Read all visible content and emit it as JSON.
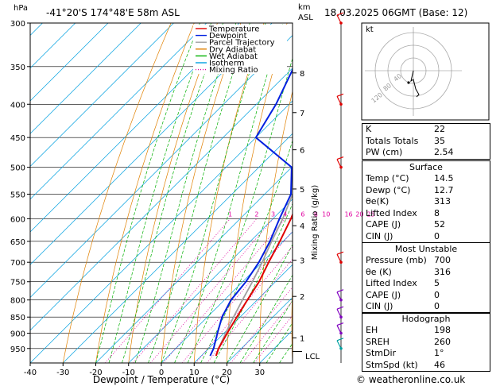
{
  "header": {
    "location": "-41°20'S  174°48'E  58m  ASL",
    "datetime": "18.03.2025  06GMT  (Base: 12)",
    "hpa_label": "hPa",
    "km_label": "km",
    "asl_label": "ASL"
  },
  "footer": {
    "copyright": "© weatheronline.co.uk"
  },
  "chart_data": {
    "type": "line",
    "subtype": "skew-T log-P",
    "xlabel": "Dewpoint / Temperature (°C)",
    "ylabel_right": "Mixing Ratio (g/kg)",
    "xlim": [
      -40,
      40
    ],
    "pressure_range": [
      300,
      1000
    ],
    "pressure_ticks": [
      300,
      350,
      400,
      450,
      500,
      550,
      600,
      650,
      700,
      750,
      800,
      850,
      900,
      950
    ],
    "x_ticks": [
      -40,
      -30,
      -20,
      -10,
      0,
      10,
      20,
      30
    ],
    "km_ticks": [
      {
        "km": "1",
        "p": 915
      },
      {
        "km": "2",
        "p": 790
      },
      {
        "km": "3",
        "p": 695
      },
      {
        "km": "4",
        "p": 615
      },
      {
        "km": "5",
        "p": 540
      },
      {
        "km": "6",
        "p": 470
      },
      {
        "km": "7",
        "p": 412
      },
      {
        "km": "8",
        "p": 358
      }
    ],
    "lcl_label": "LCL",
    "lcl_p": 960,
    "mixing_ratio_labels": [
      "1",
      "2",
      "3",
      "4",
      "6",
      "8",
      "10",
      "16",
      "20",
      "25"
    ],
    "legend": [
      {
        "name": "Temperature",
        "color": "#e00000",
        "style": "solid"
      },
      {
        "name": "Dewpoint",
        "color": "#0020e0",
        "style": "solid"
      },
      {
        "name": "Parcel Trajectory",
        "color": "#a0a0a0",
        "style": "solid"
      },
      {
        "name": "Dry Adiabat",
        "color": "#e08000",
        "style": "solid"
      },
      {
        "name": "Wet Adiabat",
        "color": "#00b000",
        "style": "solid"
      },
      {
        "name": "Isotherm",
        "color": "#00a0e0",
        "style": "solid"
      },
      {
        "name": "Mixing Ratio",
        "color": "#e000a0",
        "style": "dotted"
      }
    ],
    "series": [
      {
        "name": "Temperature",
        "points": [
          [
            975,
            14.5
          ],
          [
            950,
            13.0
          ],
          [
            900,
            11.0
          ],
          [
            850,
            9.0
          ],
          [
            800,
            7.0
          ],
          [
            750,
            5.0
          ],
          [
            700,
            2.0
          ],
          [
            650,
            -1.0
          ],
          [
            600,
            -4.5
          ],
          [
            550,
            -9.0
          ],
          [
            500,
            -14.5
          ],
          [
            450,
            -21.0
          ],
          [
            400,
            -28.0
          ],
          [
            350,
            -37.0
          ],
          [
            300,
            -47.0
          ]
        ]
      },
      {
        "name": "Dewpoint",
        "points": [
          [
            975,
            12.7
          ],
          [
            950,
            11.5
          ],
          [
            900,
            8.0
          ],
          [
            850,
            4.5
          ],
          [
            800,
            2.0
          ],
          [
            750,
            1.0
          ],
          [
            700,
            -1.0
          ],
          [
            650,
            -4.0
          ],
          [
            600,
            -8.0
          ],
          [
            550,
            -12.0
          ],
          [
            500,
            -20.0
          ],
          [
            450,
            -40.0
          ],
          [
            400,
            -44.0
          ],
          [
            350,
            -50.0
          ],
          [
            300,
            -59.0
          ]
        ]
      },
      {
        "name": "Parcel Trajectory",
        "points": [
          [
            975,
            14.5
          ],
          [
            950,
            13.0
          ],
          [
            900,
            10.5
          ],
          [
            850,
            8.0
          ],
          [
            800,
            5.5
          ],
          [
            750,
            3.0
          ],
          [
            700,
            0.0
          ],
          [
            650,
            -3.5
          ],
          [
            600,
            -7.0
          ],
          [
            550,
            -11.5
          ],
          [
            500,
            -17.0
          ],
          [
            450,
            -23.0
          ],
          [
            400,
            -30.0
          ],
          [
            350,
            -39.0
          ],
          [
            300,
            -49.0
          ]
        ]
      }
    ]
  },
  "hodograph": {
    "label": "kt",
    "ring_labels": [
      "40",
      "80",
      "120"
    ]
  },
  "indices": {
    "rows": [
      {
        "label": "K",
        "value": "22"
      },
      {
        "label": "Totals Totals",
        "value": "35"
      },
      {
        "label": "PW (cm)",
        "value": "2.54"
      }
    ]
  },
  "surface": {
    "title": "Surface",
    "rows": [
      {
        "label": "Temp (°C)",
        "value": "14.5"
      },
      {
        "label": "Dewp (°C)",
        "value": "12.7"
      },
      {
        "label": "θe(K)",
        "value": "313"
      },
      {
        "label": "Lifted Index",
        "value": "8"
      },
      {
        "label": "CAPE (J)",
        "value": "52"
      },
      {
        "label": "CIN (J)",
        "value": "0"
      }
    ]
  },
  "most_unstable": {
    "title": "Most Unstable",
    "rows": [
      {
        "label": "Pressure (mb)",
        "value": "700"
      },
      {
        "label": "θe (K)",
        "value": "316"
      },
      {
        "label": "Lifted Index",
        "value": "5"
      },
      {
        "label": "CAPE (J)",
        "value": "0"
      },
      {
        "label": "CIN (J)",
        "value": "0"
      }
    ]
  },
  "hodograph_table": {
    "title": "Hodograph",
    "rows": [
      {
        "label": "EH",
        "value": "198"
      },
      {
        "label": "SREH",
        "value": "260"
      },
      {
        "label": "StmDir",
        "value": "1°"
      },
      {
        "label": "StmSpd (kt)",
        "value": "46"
      }
    ]
  }
}
